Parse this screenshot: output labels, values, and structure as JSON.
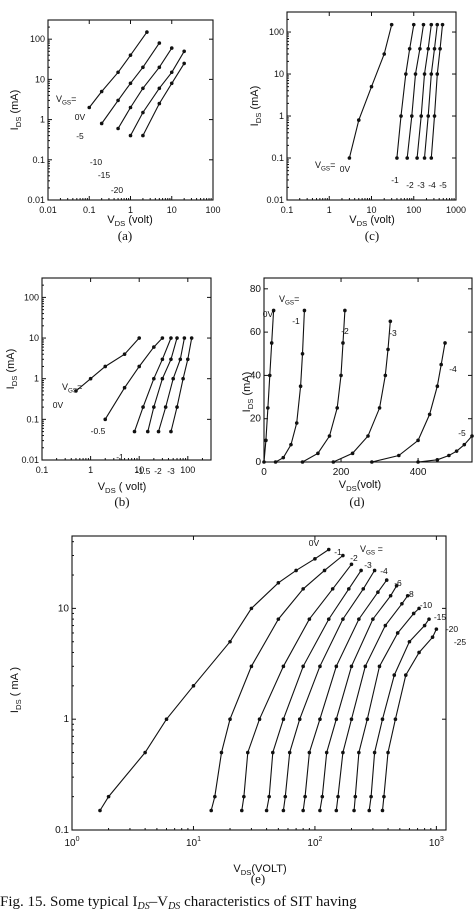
{
  "caption": "Fig. 15.  Some typical I",
  "caption_ds": "DS",
  "caption_dash": "–V",
  "caption_ds2": "DS",
  "caption_rest": " characteristics of SIT having",
  "chart_data": [
    {
      "panel": "(a)",
      "type": "line",
      "xscale": "log",
      "yscale": "log",
      "xlim": [
        0.01,
        100
      ],
      "ylim": [
        0.01,
        300
      ],
      "xticks": [
        "0.01",
        "0.1",
        "1",
        "10",
        "100"
      ],
      "yticks": [
        "0.01",
        "0.1",
        "1",
        "10",
        "100"
      ],
      "xlabel": "V",
      "xlabel_sub": "DS",
      "xlabel_unit": " (volt)",
      "ylabel": "I",
      "ylabel_sub": "DS",
      "ylabel_unit": " (mA)",
      "legend_title": "V",
      "legend_title_sub": "GS",
      "legend_title_eq": "=",
      "series": [
        {
          "name": "0V",
          "x": [
            0.1,
            0.2,
            0.5,
            1,
            2.5
          ],
          "y": [
            2,
            5,
            15,
            40,
            150
          ]
        },
        {
          "name": "-5",
          "x": [
            0.2,
            0.5,
            1,
            2,
            5
          ],
          "y": [
            0.8,
            3,
            8,
            20,
            80
          ]
        },
        {
          "name": "-10",
          "x": [
            0.5,
            1,
            2,
            5,
            10
          ],
          "y": [
            0.6,
            2,
            6,
            20,
            60
          ]
        },
        {
          "name": "-15",
          "x": [
            1,
            2,
            5,
            10,
            20
          ],
          "y": [
            0.4,
            1.5,
            6,
            15,
            50
          ]
        },
        {
          "name": "-20",
          "x": [
            2,
            5,
            10,
            20
          ],
          "y": [
            0.4,
            2.5,
            8,
            25
          ]
        }
      ]
    },
    {
      "panel": "(b)",
      "type": "line",
      "xscale": "log",
      "yscale": "log",
      "xlim": [
        0.1,
        300
      ],
      "ylim": [
        0.01,
        300
      ],
      "xticks": [
        "0.1",
        "1",
        "10",
        "100"
      ],
      "yticks": [
        "0.01",
        "0.1",
        "1",
        "10",
        "100"
      ],
      "xlabel": "V",
      "xlabel_sub": "DS",
      "xlabel_unit": " ( volt)",
      "ylabel": "I",
      "ylabel_sub": "DS",
      "ylabel_unit": " (mA)",
      "legend_title": "V",
      "legend_title_sub": "GS",
      "legend_title_eq": "=",
      "series": [
        {
          "name": "0V",
          "x": [
            0.5,
            1,
            2,
            5,
            10
          ],
          "y": [
            0.5,
            1,
            2,
            4,
            10
          ]
        },
        {
          "name": "-0.5",
          "x": [
            2,
            5,
            10,
            20,
            30
          ],
          "y": [
            0.1,
            0.6,
            2,
            6,
            10
          ]
        },
        {
          "name": "-1",
          "x": [
            8,
            12,
            20,
            30,
            45
          ],
          "y": [
            0.05,
            0.2,
            1,
            3,
            10
          ]
        },
        {
          "name": "-1.5",
          "x": [
            15,
            20,
            30,
            45,
            60
          ],
          "y": [
            0.05,
            0.2,
            1,
            3,
            10
          ]
        },
        {
          "name": "-2",
          "x": [
            25,
            35,
            50,
            70,
            85
          ],
          "y": [
            0.05,
            0.2,
            1,
            3,
            10
          ]
        },
        {
          "name": "-3",
          "x": [
            45,
            60,
            80,
            100,
            120
          ],
          "y": [
            0.05,
            0.2,
            1,
            3,
            10
          ]
        }
      ]
    },
    {
      "panel": "(c)",
      "type": "line",
      "xscale": "log",
      "yscale": "log",
      "xlim": [
        0.1,
        1000
      ],
      "ylim": [
        0.01,
        300
      ],
      "xticks": [
        "0.1",
        "1",
        "10",
        "100",
        "1000"
      ],
      "yticks": [
        "0.01",
        "0.1",
        "1",
        "10",
        "100"
      ],
      "xlabel": "V",
      "xlabel_sub": "DS",
      "xlabel_unit": " (volt)",
      "ylabel": "I",
      "ylabel_sub": "DS",
      "ylabel_unit": " (mA)",
      "legend_title": "V",
      "legend_title_sub": "GS",
      "legend_title_eq": "=",
      "series": [
        {
          "name": "0V",
          "x": [
            3,
            5,
            10,
            20,
            30
          ],
          "y": [
            0.1,
            0.8,
            5,
            30,
            150
          ]
        },
        {
          "name": "-1",
          "x": [
            40,
            50,
            65,
            80,
            100
          ],
          "y": [
            0.1,
            1,
            10,
            40,
            150
          ]
        },
        {
          "name": "-2",
          "x": [
            70,
            90,
            110,
            140,
            170
          ],
          "y": [
            0.1,
            1,
            10,
            40,
            150
          ]
        },
        {
          "name": "-3",
          "x": [
            120,
            150,
            180,
            220,
            260
          ],
          "y": [
            0.1,
            1,
            10,
            40,
            150
          ]
        },
        {
          "name": "-4",
          "x": [
            180,
            220,
            260,
            310,
            360
          ],
          "y": [
            0.1,
            1,
            10,
            40,
            150
          ]
        },
        {
          "name": "-5",
          "x": [
            260,
            310,
            360,
            420,
            480
          ],
          "y": [
            0.1,
            1,
            10,
            40,
            150
          ]
        }
      ]
    },
    {
      "panel": "(d)",
      "type": "line",
      "xscale": "linear",
      "yscale": "linear",
      "xlim": [
        0,
        540
      ],
      "ylim": [
        0,
        85
      ],
      "xticks": [
        "0",
        "200",
        "400"
      ],
      "yticks": [
        "0",
        "20",
        "40",
        "60",
        "80"
      ],
      "xlabel": "V",
      "xlabel_sub": "DS",
      "xlabel_unit": "(volt)",
      "ylabel": "I",
      "ylabel_sub": "DS",
      "ylabel_unit": " (mA)",
      "legend_title": "V",
      "legend_title_sub": "GS",
      "legend_title_eq": "=",
      "series": [
        {
          "name": "0V",
          "x": [
            0,
            5,
            10,
            15,
            20,
            25
          ],
          "y": [
            0,
            10,
            25,
            40,
            55,
            70
          ]
        },
        {
          "name": "-1",
          "x": [
            30,
            50,
            70,
            85,
            95,
            100,
            105
          ],
          "y": [
            0,
            2,
            8,
            18,
            35,
            50,
            70
          ]
        },
        {
          "name": "-2",
          "x": [
            100,
            140,
            170,
            190,
            200,
            205,
            210
          ],
          "y": [
            0,
            4,
            12,
            25,
            40,
            55,
            70
          ]
        },
        {
          "name": "-3",
          "x": [
            180,
            230,
            270,
            300,
            315,
            322,
            328
          ],
          "y": [
            0,
            4,
            12,
            25,
            40,
            52,
            65
          ]
        },
        {
          "name": "-4",
          "x": [
            280,
            350,
            400,
            430,
            450,
            460,
            470
          ],
          "y": [
            0,
            3,
            10,
            22,
            35,
            45,
            55
          ]
        },
        {
          "name": "-5",
          "x": [
            400,
            450,
            480,
            500,
            520,
            540
          ],
          "y": [
            0,
            1,
            3,
            5,
            8,
            12
          ]
        }
      ]
    },
    {
      "panel": "(e)",
      "type": "line",
      "xscale": "log",
      "yscale": "log",
      "xlim": [
        1,
        1200
      ],
      "ylim": [
        0.1,
        45
      ],
      "xticks": [
        "10^0",
        "10^1",
        "10^2",
        "10^3"
      ],
      "xtick_base": [
        "10",
        "10",
        "10",
        "10"
      ],
      "xtick_exp": [
        "0",
        "1",
        "2",
        "3"
      ],
      "yticks": [
        "0.1",
        "1",
        "10"
      ],
      "xlabel": "V",
      "xlabel_sub": "DS",
      "xlabel_unit": "(VOLT)",
      "ylabel": "I",
      "ylabel_sub": "DS",
      "ylabel_unit": " ( mA )",
      "legend_title": "V",
      "legend_title_sub": "GS",
      "legend_title_eq": " =",
      "series": [
        {
          "name": "0V",
          "x": [
            1.7,
            2,
            4,
            6,
            10,
            20,
            30,
            50,
            70,
            100,
            130
          ],
          "y": [
            0.15,
            0.2,
            0.5,
            1,
            2,
            5,
            10,
            17,
            22,
            28,
            34
          ]
        },
        {
          "name": "-1",
          "x": [
            14,
            15,
            17,
            20,
            30,
            50,
            80,
            120,
            170
          ],
          "y": [
            0.15,
            0.2,
            0.5,
            1,
            3,
            8,
            15,
            22,
            30
          ]
        },
        {
          "name": "-2",
          "x": [
            25,
            26,
            28,
            35,
            55,
            90,
            140,
            200
          ],
          "y": [
            0.15,
            0.2,
            0.5,
            1,
            3,
            8,
            15,
            25
          ]
        },
        {
          "name": "-3",
          "x": [
            40,
            42,
            45,
            55,
            80,
            130,
            190,
            240
          ],
          "y": [
            0.15,
            0.2,
            0.5,
            1,
            3,
            8,
            15,
            22
          ]
        },
        {
          "name": "-4",
          "x": [
            55,
            57,
            62,
            75,
            110,
            170,
            250,
            310
          ],
          "y": [
            0.15,
            0.2,
            0.5,
            1,
            3,
            8,
            15,
            22
          ]
        },
        {
          "name": "-6",
          "x": [
            80,
            83,
            90,
            110,
            150,
            230,
            330,
            390
          ],
          "y": [
            0.15,
            0.2,
            0.5,
            1,
            3,
            8,
            14,
            18
          ]
        },
        {
          "name": "-8",
          "x": [
            110,
            115,
            125,
            150,
            200,
            300,
            420,
            470
          ],
          "y": [
            0.15,
            0.2,
            0.5,
            1,
            3,
            8,
            13,
            16
          ]
        },
        {
          "name": "-10",
          "x": [
            150,
            155,
            170,
            200,
            260,
            380,
            520,
            580
          ],
          "y": [
            0.15,
            0.2,
            0.5,
            1,
            3,
            7,
            11,
            13
          ]
        },
        {
          "name": "-15",
          "x": [
            210,
            215,
            230,
            270,
            340,
            480,
            650,
            720
          ],
          "y": [
            0.15,
            0.2,
            0.5,
            1,
            3,
            6,
            9,
            10
          ]
        },
        {
          "name": "-20",
          "x": [
            280,
            290,
            310,
            360,
            450,
            600,
            800,
            870
          ],
          "y": [
            0.15,
            0.2,
            0.5,
            1,
            2.5,
            5,
            7,
            8
          ]
        },
        {
          "name": "-25",
          "x": [
            360,
            370,
            400,
            460,
            560,
            720,
            930,
            1000
          ],
          "y": [
            0.15,
            0.2,
            0.5,
            1,
            2.5,
            4,
            5.5,
            6.5
          ]
        }
      ]
    }
  ]
}
